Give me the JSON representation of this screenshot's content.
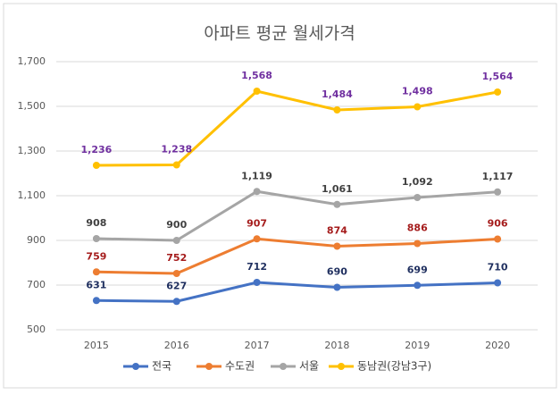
{
  "chart_data": {
    "type": "line",
    "title": "아파트 평균 월세가격",
    "categories": [
      "2015",
      "2016",
      "2017",
      "2018",
      "2019",
      "2020"
    ],
    "ylim": [
      500,
      1700
    ],
    "yticks": [
      500,
      700,
      900,
      {
        "value": 1100,
        "label": "1,100"
      },
      {
        "value": 1300,
        "label": "1,300"
      },
      {
        "value": 1500,
        "label": "1,500"
      },
      {
        "value": 1700,
        "label": "1,700"
      }
    ],
    "grid": true,
    "legend": "bottom",
    "series": [
      {
        "name": "전국",
        "color": "#4472c4",
        "label_color": "#1f2f5f",
        "values": [
          631,
          627,
          712,
          690,
          699,
          710
        ]
      },
      {
        "name": "수도권",
        "color": "#ed7d31",
        "label_color": "#a51c1c",
        "values": [
          759,
          752,
          907,
          874,
          886,
          906
        ]
      },
      {
        "name": "서울",
        "color": "#a5a5a5",
        "label_color": "#404040",
        "values": [
          908,
          900,
          1119,
          1061,
          1092,
          1117
        ],
        "value_labels": [
          "908",
          "900",
          "1,119",
          "1,061",
          "1,092",
          "1,117"
        ]
      },
      {
        "name": "동남권(강남3구)",
        "color": "#ffc000",
        "label_color": "#7030a0",
        "values": [
          1236,
          1238,
          1568,
          1484,
          1498,
          1564
        ],
        "value_labels": [
          "1,236",
          "1,238",
          "1,568",
          "1,484",
          "1,498",
          "1,564"
        ]
      }
    ]
  }
}
